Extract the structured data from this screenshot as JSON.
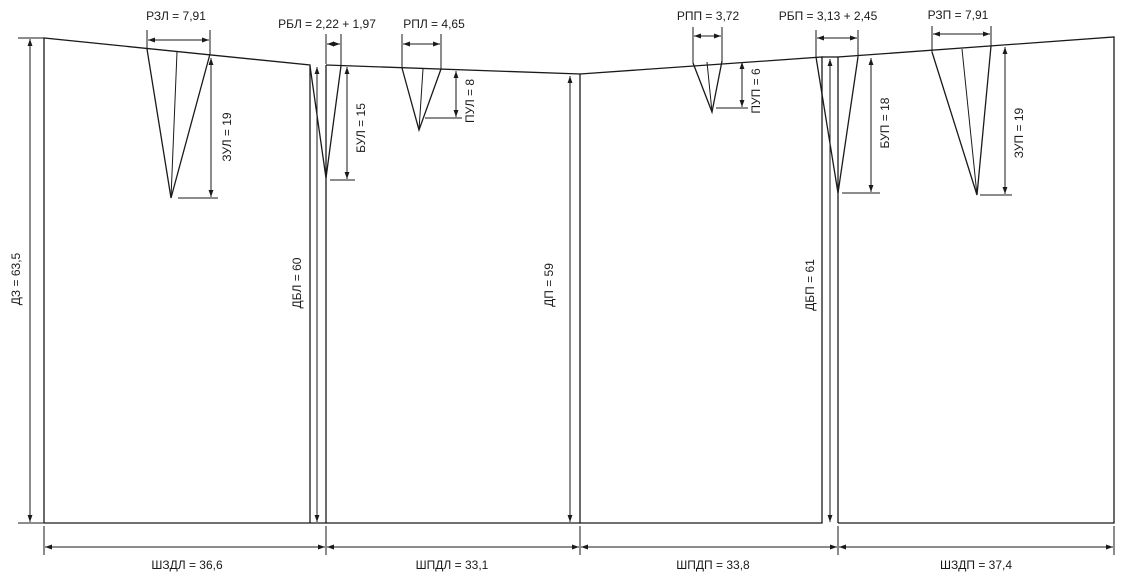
{
  "labels": {
    "rzl": "РЗЛ = 7,91",
    "rbl": "РБЛ = 2,22 + 1,97",
    "rpl": "РПЛ = 4,65",
    "rpp": "РПП = 3,72",
    "rbp": "РБП = 3,13 + 2,45",
    "rzp": "РЗП = 7,91",
    "zul": "ЗУЛ = 19",
    "bul": "БУЛ = 15",
    "pul": "ПУЛ = 8",
    "pup": "ПУП = 6",
    "bup": "БУП = 18",
    "zup": "ЗУП = 19",
    "dz": "ДЗ = 63,5",
    "dbl": "ДБЛ = 60",
    "dp": "ДП = 59",
    "dbp": "ДБП = 61",
    "shzdl": "ШЗДЛ = 36,6",
    "shpdl": "ШПДЛ = 33,1",
    "shpdp": "ШПДП = 33,8",
    "shzdp": "ШЗДП = 37,4"
  },
  "colors": {
    "line": "#1a1a1a",
    "background": "#ffffff"
  }
}
